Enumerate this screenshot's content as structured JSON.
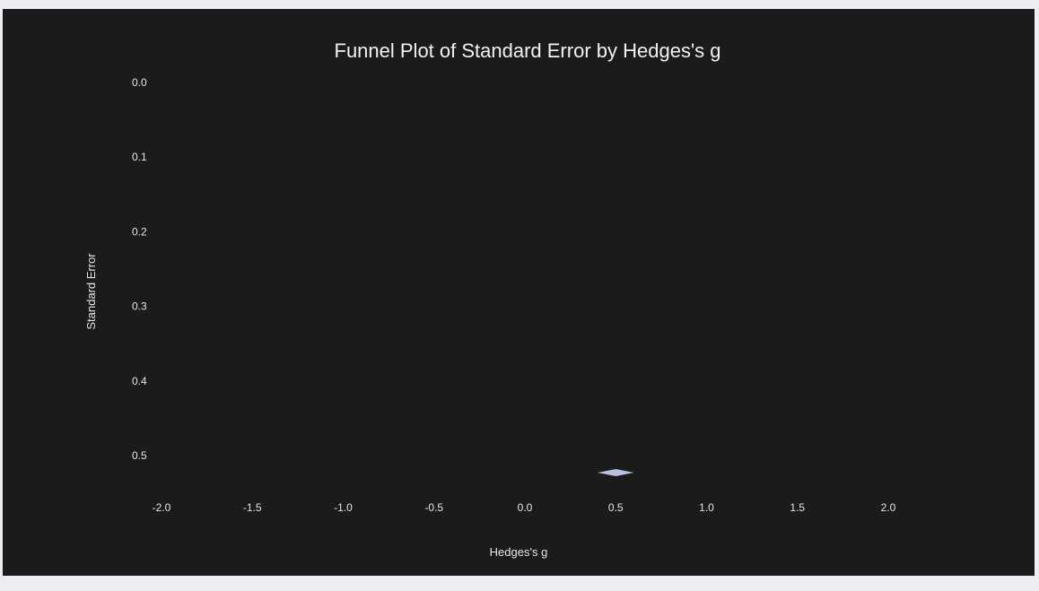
{
  "colors": {
    "page_background": "#eceef2",
    "plot_background": "#1b1b1b",
    "text": "#e6e6e6",
    "title_text": "#f2f2f2",
    "summary_diamond": "#b9c0e0"
  },
  "chart_data": {
    "type": "scatter",
    "title": "Funnel Plot of Standard Error by Hedges's g",
    "xlabel": "Hedges's g",
    "ylabel": "Standard Error",
    "xlim": [
      -2.0,
      2.0
    ],
    "ylim": [
      0.0,
      0.5
    ],
    "y_inverted": true,
    "grid": false,
    "x_ticks": [
      {
        "value": -2.0,
        "label": "-2.0"
      },
      {
        "value": -1.5,
        "label": "-1.5"
      },
      {
        "value": -1.0,
        "label": "-1.0"
      },
      {
        "value": -0.5,
        "label": "-0.5"
      },
      {
        "value": 0.0,
        "label": "0.0"
      },
      {
        "value": 0.5,
        "label": "0.5"
      },
      {
        "value": 1.0,
        "label": "1.0"
      },
      {
        "value": 1.5,
        "label": "1.5"
      },
      {
        "value": 2.0,
        "label": "2.0"
      }
    ],
    "y_ticks": [
      {
        "value": 0.0,
        "label": "0.0"
      },
      {
        "value": 0.1,
        "label": "0.1"
      },
      {
        "value": 0.2,
        "label": "0.2"
      },
      {
        "value": 0.3,
        "label": "0.3"
      },
      {
        "value": 0.4,
        "label": "0.4"
      },
      {
        "value": 0.5,
        "label": "0.5"
      }
    ],
    "summary_effect": {
      "estimate": 0.5,
      "ci_low": 0.4,
      "ci_high": 0.6
    },
    "points": []
  }
}
